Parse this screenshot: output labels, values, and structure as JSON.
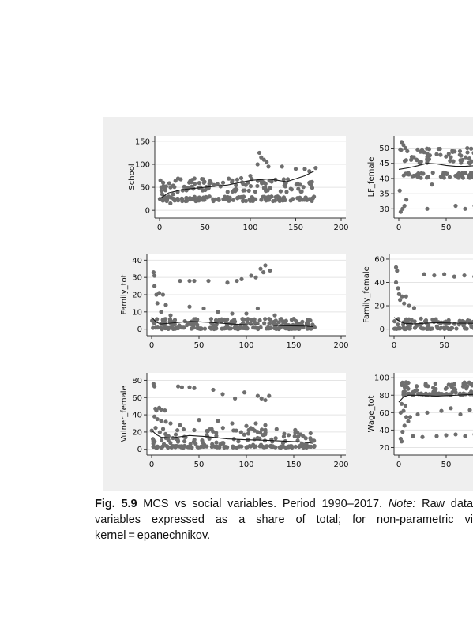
{
  "caption": {
    "fig_label": "Fig. 5.9",
    "title": "MCS vs social variables. Period 1990–2017.",
    "note_label": "Note:",
    "line1_rest": "Raw data",
    "line2": "variables expressed as a share of total; for non-parametric vi",
    "line3": "kernel = epanechnikov."
  },
  "colors": {
    "points": "#6e6e6e",
    "fit_line": "#1a1a1a",
    "panel_bg": "#efefef",
    "plot_bg": "#ffffff",
    "grid": "#e4e4e4"
  },
  "chart_data": [
    {
      "id": "school",
      "type": "scatter",
      "ylabel": "School",
      "xlim": [
        0,
        200
      ],
      "ylim": [
        -10,
        155
      ],
      "xticks": [
        "0",
        "50",
        "100",
        "150",
        "200"
      ],
      "yticks": [
        "0",
        "50",
        "100",
        "150"
      ],
      "cluster": {
        "y_low": [
          20,
          30
        ],
        "y_high": [
          40,
          70
        ]
      },
      "fit_line": {
        "x": [
          0,
          10,
          25,
          50,
          75,
          100,
          120,
          140,
          160,
          170
        ],
        "y": [
          25,
          38,
          45,
          50,
          55,
          65,
          68,
          62,
          75,
          85
        ]
      },
      "points": {
        "x": [
          110,
          115,
          108,
          120,
          135,
          150,
          160,
          165,
          172,
          112,
          118,
          100,
          90,
          80,
          70,
          60,
          45,
          30,
          20,
          15,
          10,
          5,
          3,
          2,
          125,
          130,
          140,
          95,
          85,
          75,
          65,
          55,
          40,
          35,
          25,
          12,
          8,
          6,
          4,
          1
        ],
        "y": [
          125,
          110,
          100,
          95,
          95,
          90,
          90,
          85,
          92,
          115,
          105,
          75,
          70,
          65,
          60,
          55,
          50,
          45,
          40,
          35,
          30,
          28,
          35,
          50,
          20,
          30,
          40,
          55,
          45,
          40,
          25,
          30,
          20,
          25,
          20,
          15,
          20,
          45,
          60,
          65
        ]
      }
    },
    {
      "id": "lf_female",
      "type": "scatter",
      "ylabel": "LF_female",
      "xlim": [
        0,
        200
      ],
      "ylim": [
        28,
        53
      ],
      "xticks": [
        "0",
        "50"
      ],
      "yticks": [
        "30",
        "35",
        "40",
        "45",
        "50"
      ],
      "cluster": {
        "y_low": [
          40,
          42
        ],
        "y_high": [
          45,
          50
        ]
      },
      "fit_line": {
        "x": [
          0,
          10,
          20,
          30,
          40,
          50,
          60,
          70,
          80,
          90,
          100
        ],
        "y": [
          43,
          43.5,
          44.2,
          45,
          44.8,
          44.3,
          44,
          44,
          44.2,
          44,
          44
        ]
      },
      "points": {
        "x": [
          2,
          4,
          6,
          8,
          30,
          60,
          70,
          80,
          3,
          5,
          7,
          9,
          40,
          55,
          65,
          75,
          85,
          95,
          1,
          35
        ],
        "y": [
          29,
          30,
          31,
          33,
          30,
          31,
          30,
          31,
          52,
          51,
          50,
          49,
          48,
          47,
          46,
          45,
          48,
          47,
          36,
          38
        ]
      }
    },
    {
      "id": "family_tot",
      "type": "scatter",
      "ylabel": "Family_tot",
      "xlim": [
        0,
        200
      ],
      "ylim": [
        -2,
        42
      ],
      "xticks": [
        "0",
        "50",
        "100",
        "150",
        "200"
      ],
      "yticks": [
        "0",
        "10",
        "20",
        "30",
        "40"
      ],
      "cluster": {
        "y_low": [
          0,
          1
        ],
        "y_high": [
          2,
          6
        ]
      },
      "fit_line": {
        "x": [
          0,
          5,
          10,
          20,
          40,
          60,
          80,
          100,
          120,
          140,
          160,
          170
        ],
        "y": [
          7,
          4,
          3,
          3.5,
          4.5,
          4,
          3.2,
          2.5,
          2.3,
          2,
          1.8,
          1.5
        ]
      },
      "points": {
        "x": [
          2,
          3,
          5,
          8,
          12,
          15,
          30,
          40,
          45,
          60,
          80,
          90,
          95,
          105,
          110,
          115,
          118,
          120,
          125,
          40,
          55,
          70,
          85,
          100,
          112,
          130,
          150,
          165,
          172,
          3,
          6,
          10,
          20
        ],
        "y": [
          33,
          31,
          20,
          21,
          20,
          14,
          28,
          28,
          28,
          28,
          27,
          28,
          29,
          31,
          30,
          35,
          33,
          37,
          34,
          13,
          12,
          10,
          9,
          9,
          12,
          8,
          6,
          3,
          1,
          25,
          15,
          10,
          8
        ]
      }
    },
    {
      "id": "family_female",
      "type": "scatter",
      "ylabel": "Family_female",
      "xlim": [
        0,
        200
      ],
      "ylim": [
        -3,
        62
      ],
      "xticks": [
        "0",
        "50"
      ],
      "yticks": [
        "0",
        "20",
        "40",
        "60"
      ],
      "cluster": {
        "y_low": [
          0,
          1
        ],
        "y_high": [
          2,
          9
        ]
      },
      "fit_line": {
        "x": [
          0,
          5,
          10,
          20,
          40,
          60,
          80,
          100
        ],
        "y": [
          10,
          7,
          5,
          4.5,
          5.5,
          5.2,
          5,
          4.8
        ]
      },
      "points": {
        "x": [
          2,
          3,
          5,
          8,
          12,
          15,
          20,
          30,
          40,
          50,
          60,
          70,
          80,
          90,
          95,
          2,
          4,
          6,
          10
        ],
        "y": [
          53,
          50,
          30,
          28,
          28,
          20,
          18,
          47,
          46,
          47,
          45,
          46,
          45,
          40,
          42,
          40,
          35,
          25,
          22
        ]
      }
    },
    {
      "id": "vulner_female",
      "type": "scatter",
      "ylabel": "Vulner_female",
      "xlim": [
        0,
        200
      ],
      "ylim": [
        -3,
        85
      ],
      "xticks": [
        "0",
        "50",
        "100",
        "150",
        "200"
      ],
      "yticks": [
        "0",
        "20",
        "40",
        "60",
        "80"
      ],
      "cluster": {
        "y_low": [
          2,
          4
        ],
        "y_high": [
          5,
          25
        ]
      },
      "fit_line": {
        "x": [
          0,
          5,
          10,
          20,
          40,
          60,
          80,
          100,
          120,
          140,
          160,
          170
        ],
        "y": [
          22,
          17,
          14,
          13,
          16,
          14.5,
          12,
          11,
          10.5,
          9.5,
          8.5,
          7
        ]
      },
      "points": {
        "x": [
          2,
          3,
          4,
          5,
          8,
          10,
          14,
          28,
          32,
          40,
          45,
          65,
          75,
          88,
          98,
          112,
          116,
          120,
          124,
          3,
          6,
          10,
          15,
          20,
          30,
          50,
          70,
          85,
          100,
          110,
          120,
          140,
          160
        ],
        "y": [
          76,
          73,
          47,
          45,
          48,
          46,
          45,
          73,
          72,
          72,
          71,
          69,
          64,
          59,
          66,
          62,
          59,
          57,
          62,
          38,
          35,
          33,
          32,
          30,
          28,
          34,
          33,
          30,
          27,
          30,
          28,
          18,
          15
        ]
      }
    },
    {
      "id": "wage_tot",
      "type": "scatter",
      "ylabel": "Wage_tot",
      "xlim": [
        0,
        200
      ],
      "ylim": [
        15,
        102
      ],
      "xticks": [
        "0",
        "50"
      ],
      "yticks": [
        "20",
        "40",
        "60",
        "80",
        "100"
      ],
      "cluster": {
        "y_low": [
          80,
          82
        ],
        "y_high": [
          83,
          95
        ]
      },
      "fit_line": {
        "x": [
          0,
          5,
          10,
          20,
          40,
          60,
          80,
          100
        ],
        "y": [
          72,
          78,
          80,
          80,
          79,
          80,
          81,
          81
        ]
      },
      "points": {
        "x": [
          2,
          3,
          4,
          6,
          8,
          10,
          15,
          25,
          40,
          50,
          60,
          70,
          80,
          90,
          95,
          2,
          5,
          12,
          20,
          30,
          45,
          55,
          65,
          75,
          85,
          3,
          7
        ],
        "y": [
          30,
          27,
          38,
          45,
          55,
          50,
          33,
          32,
          33,
          34,
          35,
          33,
          35,
          32,
          36,
          60,
          62,
          55,
          58,
          60,
          62,
          65,
          58,
          63,
          65,
          70,
          68
        ]
      }
    }
  ]
}
